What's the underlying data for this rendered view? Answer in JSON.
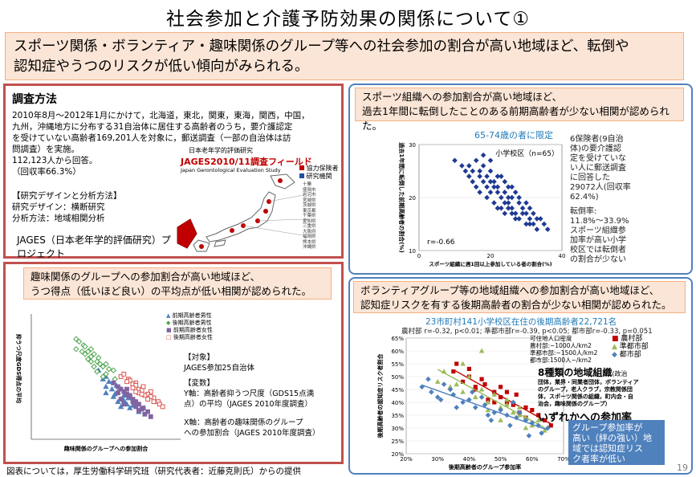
{
  "title": "社会参加と介護予防効果の関係について①",
  "summary": [
    "スポーツ関係・ボランティア・趣味関係のグループ等への社会参加の割合が高い地域ほど、転倒や",
    "認知症やうつのリスクが低い傾向がみられる。"
  ],
  "method": {
    "heading": "調査方法",
    "lines": [
      "2010年8月～2012年1月にかけて，北海道，東北，関東，東海，関西，中国，",
      "九州，沖縄地方に分布する31自治体に居住する高齢者のうち，要介護認定",
      "を受けていない高齢者169,201人を対象に，郵送調査（一部の自治体は訪",
      "問調査）を実施。",
      "112,123人から回答。",
      "（回収率66.3%）"
    ],
    "design_heading": "【研究デザインと分析方法】",
    "design_lines": [
      "研究デザイン：横断研究",
      "分析方法：地域相関分析"
    ],
    "jages": [
      "JAGES（日本老年学的評価研究）プ",
      "ロジェクト"
    ],
    "map_small_title": "日本老年学的評価研究",
    "map_title": "JAGES2010/11調査フィールド",
    "map_subtitle": "Japan Gerontological Evaluation Study",
    "map_legend": [
      "協力保険者",
      "研究機関"
    ],
    "map_places": [
      "十勝",
      "盛岡市",
      "岩沼市",
      "宮城県",
      "茨城県",
      "東京都",
      "千葉県",
      "愛知県",
      "三重県",
      "大阪府",
      "福岡県",
      "熊本県",
      "沖縄県"
    ]
  },
  "sport": {
    "callout": [
      "スポーツ組織への参加割合が高い地域ほど、",
      "過去1年間に転倒したことのある前期高齢者が少ない相関が認められた。"
    ],
    "chart_title": "65-74歳の者に限定",
    "note": [
      "6保険者(9自治",
      "体)の要介護認",
      "定を受けていな",
      "い人に郵送調査",
      "に回答した",
      "29072人(回収率",
      "62.4%)",
      "",
      "転倒率:",
      "11.8%〜33.9%",
      "スポーツ組織参",
      "加率が高い小学",
      "校区では転倒者",
      "の割合が少ない"
    ]
  },
  "hobby": {
    "callout": [
      "趣味関係のグループへの参加割合が高い地域ほど、",
      "うつ得点（低いほど良い）の平均点が低い相関が認められた。"
    ],
    "legend": [
      "前期高齢者男性",
      "後期高齢者男性",
      "前期高齢者女性",
      "後期高齢者女性"
    ],
    "target_h": "【対象】",
    "target": "JAGES参加25自治体",
    "var_h": "【変数】",
    "yvar": [
      "Y軸：高齢者抑うつ尺度（GDS15点満",
      "点）の平均（JAGES 2010年度調査）"
    ],
    "xvar": [
      "X軸：高齢者の趣味関係のグループ",
      "への参加割合（JAGES 2010年度調査）"
    ]
  },
  "vol": {
    "callout": [
      "ボランティアグループ等の地域組織への参加割合が高い地域ほど、",
      "認知症リスクを有する後期高齢者の割合が少ない相関が認められた。"
    ],
    "chart_title": "23市町村141小学校区在住の後期高齢者22,721名",
    "stats": "農村部 r=-0.32, p<0.01; 準都市部r=-0.39, p<0.05; 都市部r=-0.33, p=0.051",
    "legend": [
      "農村部",
      "準都市部",
      "都市部"
    ],
    "density": [
      "可住地人口密度",
      "農村部:~1000人/km2",
      "準都市部:~1500人/km2",
      "都市部:1500人~/km2"
    ],
    "orgs_h": "8種類の地域組織",
    "orgs_suffix": "(政治",
    "orgs": [
      "団体，業界・同業者団体，ボランティア",
      "のグループ，老人クラブ，宗教関係団",
      "体，スポーツ関係の組織，町内会・自",
      "治会，趣味関係のグループ）"
    ],
    "orgs_tail": "いずれかへの参加率",
    "bluebox": [
      "グループ参加率が",
      "高い（絆の強い）地",
      "域では認知症リス",
      "ク者率が低い"
    ]
  },
  "footer": "図表については，厚生労働科学研究班（研究代表者：近藤克則氏）からの提供",
  "page_number": "19",
  "chart_data": [
    {
      "type": "scatter",
      "title": "65-74歳の者に限定",
      "annotation": "小学校区（n=65）",
      "r": "r=-0.66",
      "xlabel": "スポーツ組織に週1回以上参加している者の割合(%)",
      "ylabel": "過去1年間に転倒した前期高齢者の割合(%)",
      "xlim": [
        0,
        40
      ],
      "ylim": [
        10,
        30
      ],
      "xticks": [
        "0",
        "20",
        "40"
      ],
      "yticks": [
        "10",
        "20",
        "30"
      ],
      "x": [
        10,
        12,
        13,
        14,
        15,
        15,
        16,
        17,
        17,
        18,
        18,
        19,
        19,
        20,
        20,
        21,
        21,
        22,
        22,
        23,
        23,
        24,
        24,
        25,
        25,
        26,
        26,
        27,
        27,
        28,
        28,
        29,
        30,
        30,
        31,
        31,
        32,
        32,
        33,
        34,
        35,
        36,
        18,
        20,
        22,
        24,
        26,
        14,
        16,
        28,
        30,
        21,
        23,
        25,
        19,
        27,
        29,
        17,
        22,
        24,
        26,
        31,
        33,
        20,
        25
      ],
      "y": [
        27,
        26,
        25,
        24,
        23,
        25,
        22,
        24,
        21,
        23,
        26,
        22,
        20,
        25,
        21,
        23,
        19,
        22,
        18,
        24,
        20,
        21,
        17,
        19,
        22,
        20,
        18,
        17,
        21,
        19,
        16,
        18,
        17,
        15,
        18,
        16,
        15,
        17,
        14,
        16,
        15,
        14,
        28,
        27,
        24,
        23,
        22,
        26,
        27,
        20,
        19,
        22,
        18,
        20,
        24,
        16,
        17,
        25,
        21,
        19,
        17,
        15,
        16,
        23,
        18
      ]
    },
    {
      "type": "scatter",
      "xlabel": "趣味関係のグループへの参加割合",
      "ylabel": "抑うつ尺度GDS得点の平均",
      "xlim": [
        0,
        1
      ],
      "ylim": [
        0,
        1
      ],
      "series": [
        {
          "name": "前期高齢者男性",
          "color": "#4f81bd",
          "shape": "triangle",
          "x": [
            0.45,
            0.5,
            0.55,
            0.6,
            0.5,
            0.58,
            0.62,
            0.65,
            0.7,
            0.52,
            0.48,
            0.56,
            0.6,
            0.64,
            0.68,
            0.54,
            0.5,
            0.58,
            0.66,
            0.62,
            0.55,
            0.6,
            0.72,
            0.57,
            0.63
          ],
          "y": [
            0.55,
            0.5,
            0.45,
            0.4,
            0.42,
            0.38,
            0.35,
            0.33,
            0.3,
            0.46,
            0.48,
            0.36,
            0.32,
            0.28,
            0.27,
            0.4,
            0.37,
            0.3,
            0.25,
            0.31,
            0.34,
            0.26,
            0.22,
            0.43,
            0.29
          ]
        },
        {
          "name": "後期高齢者男性",
          "color": "#4aa34a",
          "shape": "diamond",
          "x": [
            0.3,
            0.35,
            0.4,
            0.42,
            0.45,
            0.38,
            0.5,
            0.32,
            0.36,
            0.44,
            0.48,
            0.4,
            0.55,
            0.34,
            0.46,
            0.52,
            0.38,
            0.42,
            0.3,
            0.5,
            0.44,
            0.36,
            0.48,
            0.4,
            0.56
          ],
          "y": [
            0.8,
            0.75,
            0.72,
            0.68,
            0.65,
            0.7,
            0.6,
            0.78,
            0.74,
            0.62,
            0.58,
            0.66,
            0.55,
            0.7,
            0.6,
            0.56,
            0.64,
            0.58,
            0.72,
            0.52,
            0.54,
            0.68,
            0.5,
            0.62,
            0.48
          ]
        },
        {
          "name": "前期高齢者女性",
          "color": "#8064a2",
          "shape": "square",
          "x": [
            0.55,
            0.6,
            0.65,
            0.7,
            0.62,
            0.68,
            0.72,
            0.75,
            0.58,
            0.66,
            0.7,
            0.64,
            0.6,
            0.74,
            0.78,
            0.68,
            0.62,
            0.7,
            0.76,
            0.66,
            0.72,
            0.8,
            0.64,
            0.58,
            0.69
          ],
          "y": [
            0.45,
            0.4,
            0.35,
            0.3,
            0.38,
            0.32,
            0.28,
            0.25,
            0.42,
            0.34,
            0.27,
            0.36,
            0.32,
            0.24,
            0.22,
            0.3,
            0.28,
            0.26,
            0.2,
            0.35,
            0.23,
            0.18,
            0.4,
            0.37,
            0.29
          ]
        },
        {
          "name": "後期高齢者女性",
          "color": "#d9534f",
          "shape": "square",
          "x": [
            0.6,
            0.65,
            0.7,
            0.75,
            0.8,
            0.68,
            0.72,
            0.78,
            0.82,
            0.66,
            0.74,
            0.85,
            0.7,
            0.76,
            0.62,
            0.8,
            0.72,
            0.86,
            0.68,
            0.78,
            0.74,
            0.82,
            0.64,
            0.7,
            0.88
          ],
          "y": [
            0.5,
            0.48,
            0.45,
            0.42,
            0.38,
            0.44,
            0.4,
            0.36,
            0.33,
            0.47,
            0.39,
            0.3,
            0.43,
            0.35,
            0.52,
            0.34,
            0.37,
            0.28,
            0.41,
            0.32,
            0.36,
            0.3,
            0.46,
            0.38,
            0.26
          ]
        }
      ]
    },
    {
      "type": "scatter",
      "title": "23市町村141小学校区在住の後期高齢者22,721名",
      "xlabel": "後期高齢者のグループ参加率",
      "ylabel": "後期高齢者の認知症リスク者割合",
      "xlim": [
        20,
        70
      ],
      "ylim": [
        20,
        65
      ],
      "xticks": [
        "20%",
        "30%",
        "40%",
        "50%",
        "60%",
        "70%"
      ],
      "yticks": [
        "20%",
        "25%",
        "30%",
        "35%",
        "40%",
        "45%",
        "50%",
        "55%",
        "60%",
        "65%"
      ],
      "series": [
        {
          "name": "農村部",
          "color": "#c00000",
          "shape": "square",
          "x": [
            35,
            38,
            40,
            42,
            45,
            48,
            50,
            52,
            55,
            58,
            60,
            62,
            44,
            46,
            50,
            54,
            56,
            40,
            48,
            52,
            58,
            64,
            66,
            42,
            36
          ],
          "y": [
            52,
            48,
            50,
            45,
            47,
            44,
            42,
            40,
            43,
            38,
            37,
            35,
            49,
            41,
            46,
            39,
            36,
            53,
            40,
            44,
            34,
            33,
            31,
            46,
            55
          ]
        },
        {
          "name": "準都市部",
          "color": "#9bbb59",
          "shape": "triangle",
          "x": [
            30,
            34,
            38,
            42,
            46,
            50,
            54,
            58,
            62,
            40,
            44,
            48,
            52,
            56,
            36,
            60,
            32,
            46,
            52,
            64,
            38,
            56,
            44,
            50,
            58
          ],
          "y": [
            48,
            46,
            44,
            42,
            40,
            38,
            36,
            34,
            33,
            50,
            45,
            43,
            39,
            35,
            47,
            31,
            52,
            37,
            41,
            29,
            55,
            38,
            60,
            33,
            30
          ]
        },
        {
          "name": "都市部",
          "color": "#4f81bd",
          "shape": "diamond",
          "x": [
            25,
            28,
            30,
            32,
            35,
            38,
            40,
            42,
            45,
            48,
            50,
            52,
            55,
            58,
            60,
            62,
            65,
            34,
            36,
            44,
            46,
            54,
            56,
            63,
            27,
            31,
            41,
            47,
            53,
            59
          ],
          "y": [
            46,
            44,
            42,
            47,
            43,
            40,
            41,
            38,
            39,
            36,
            37,
            35,
            34,
            33,
            32,
            31,
            30,
            45,
            38,
            42,
            35,
            40,
            36,
            28,
            49,
            41,
            44,
            33,
            31,
            27
          ]
        }
      ],
      "trendlines": [
        "農村部",
        "準都市部",
        "都市部"
      ]
    }
  ]
}
